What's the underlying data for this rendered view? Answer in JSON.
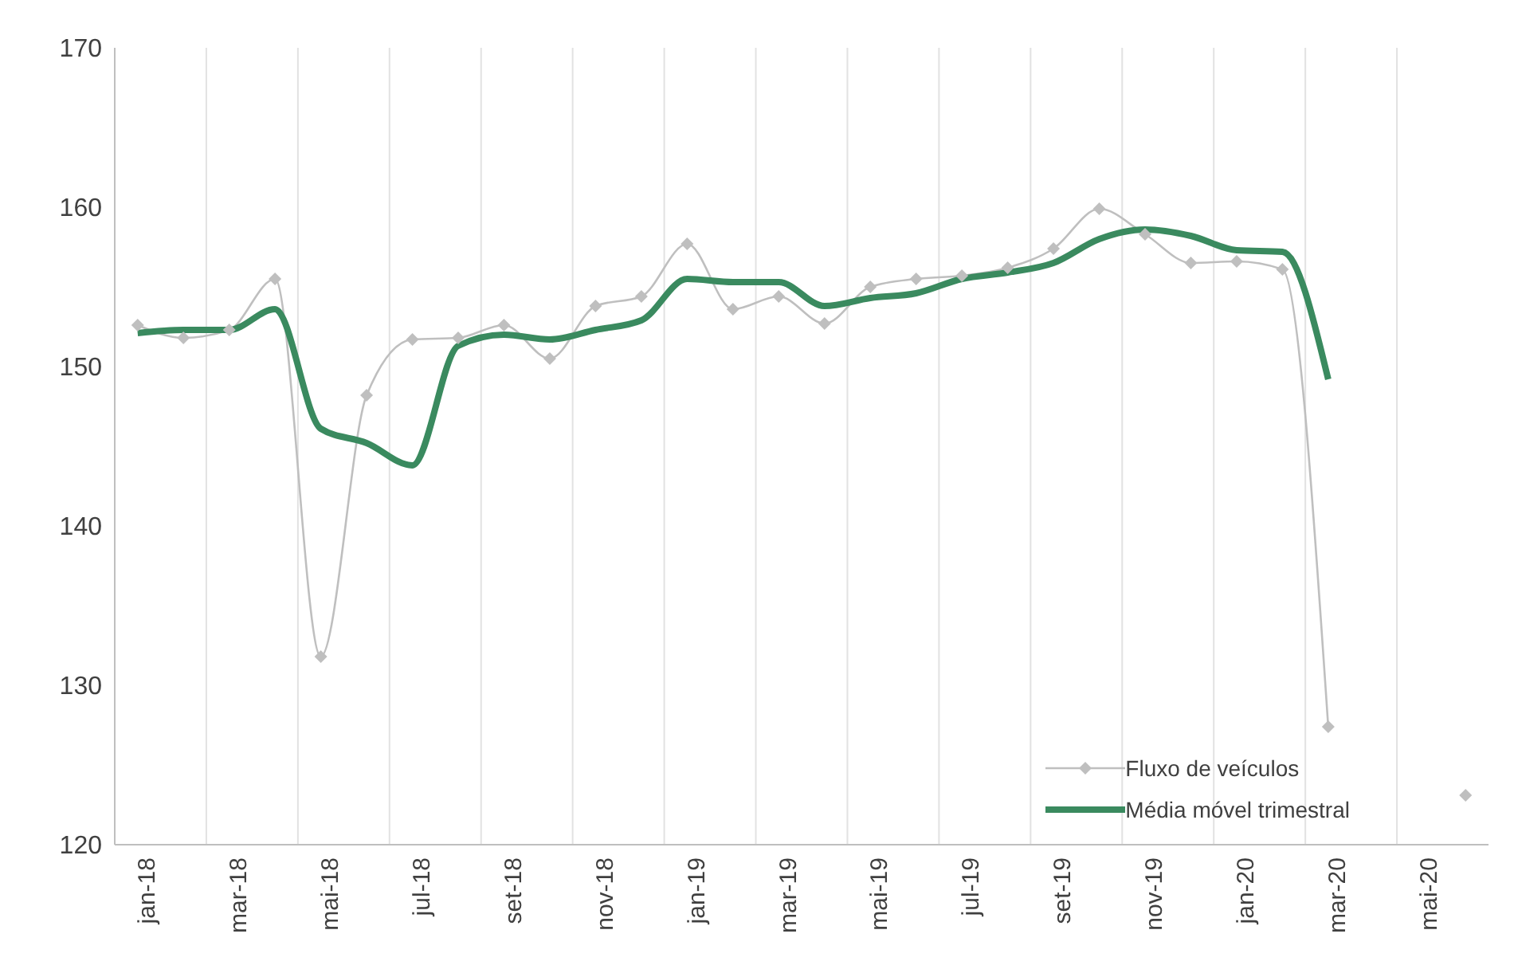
{
  "chart_data": {
    "type": "line",
    "categories": [
      "jan-18",
      null,
      "mar-18",
      null,
      "mai-18",
      null,
      "jul-18",
      null,
      "set-18",
      null,
      "nov-18",
      null,
      "jan-19",
      null,
      "mar-19",
      null,
      "mai-19",
      null,
      "jul-19",
      null,
      "set-19",
      null,
      "nov-19",
      null,
      "jan-20",
      null,
      "mar-20",
      null,
      "mai-20",
      null
    ],
    "series": [
      {
        "name": "Fluxo de veículos",
        "color": "#bfbfbf",
        "marker": "diamond",
        "values": [
          152.6,
          151.8,
          152.3,
          155.5,
          131.8,
          148.2,
          151.7,
          151.8,
          152.6,
          150.5,
          153.8,
          154.4,
          157.7,
          153.6,
          154.4,
          152.7,
          155.0,
          155.5,
          155.7,
          156.2,
          157.4,
          159.9,
          158.3,
          156.5,
          156.6,
          156.1,
          127.4,
          null,
          null,
          123.1
        ]
      },
      {
        "name": "Média móvel trimestral",
        "color": "#3a8a5f",
        "marker": "none",
        "values": [
          152.1,
          152.3,
          152.3,
          153.6,
          146.1,
          145.2,
          143.8,
          151.3,
          152.0,
          151.7,
          152.3,
          152.9,
          155.5,
          155.3,
          155.3,
          153.8,
          154.3,
          154.6,
          155.5,
          155.9,
          156.5,
          158.0,
          158.6,
          158.2,
          157.3,
          157.2,
          149.2,
          null,
          null,
          null
        ]
      }
    ],
    "ylim": [
      120,
      170
    ],
    "yticks": [
      120,
      130,
      140,
      150,
      160,
      170
    ],
    "grid": "x",
    "legend": "bottom right"
  }
}
